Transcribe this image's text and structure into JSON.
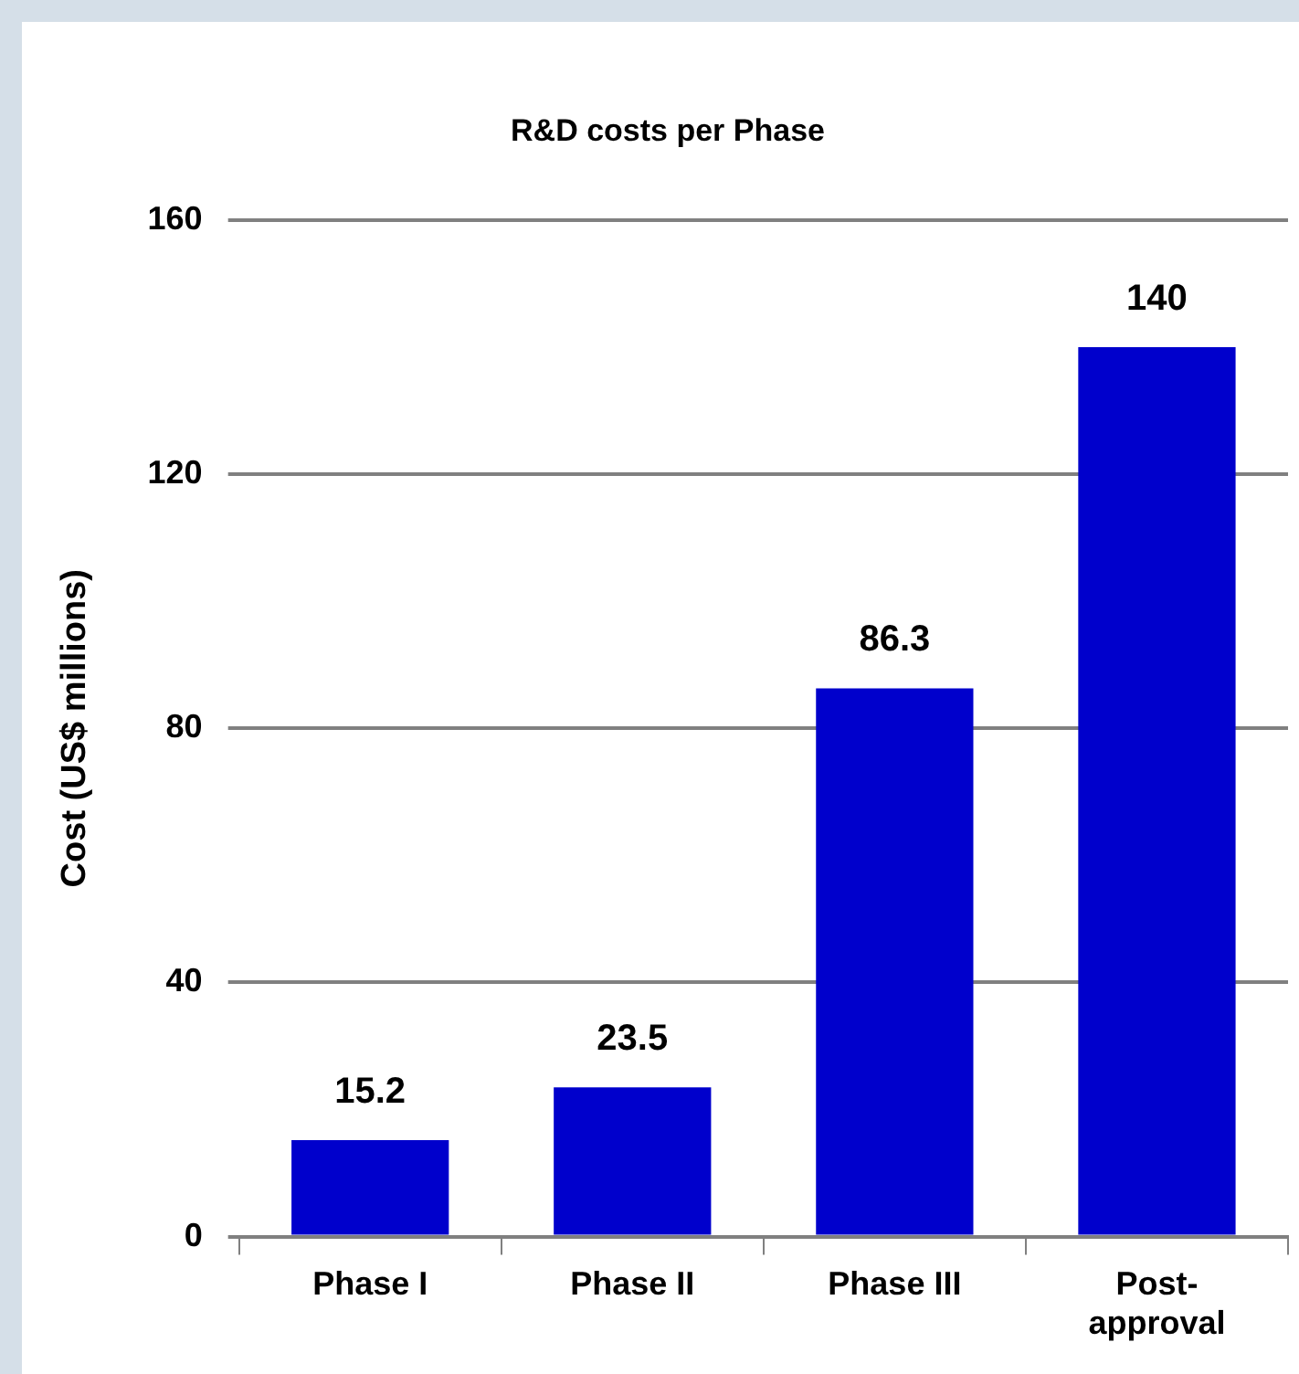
{
  "chart_data": {
    "type": "bar",
    "title": "R&D costs per Phase",
    "ylabel": "Cost (US$ millions)",
    "categories": [
      "Phase I",
      "Phase II",
      "Phase III",
      "Post-approval"
    ],
    "values": [
      15.2,
      23.5,
      86.3,
      140
    ],
    "color": "#0000cc",
    "ylim": [
      0,
      160
    ],
    "yticks": [
      0,
      40,
      80,
      120,
      160
    ],
    "grid": "y",
    "data_labels": true,
    "legend": false
  }
}
